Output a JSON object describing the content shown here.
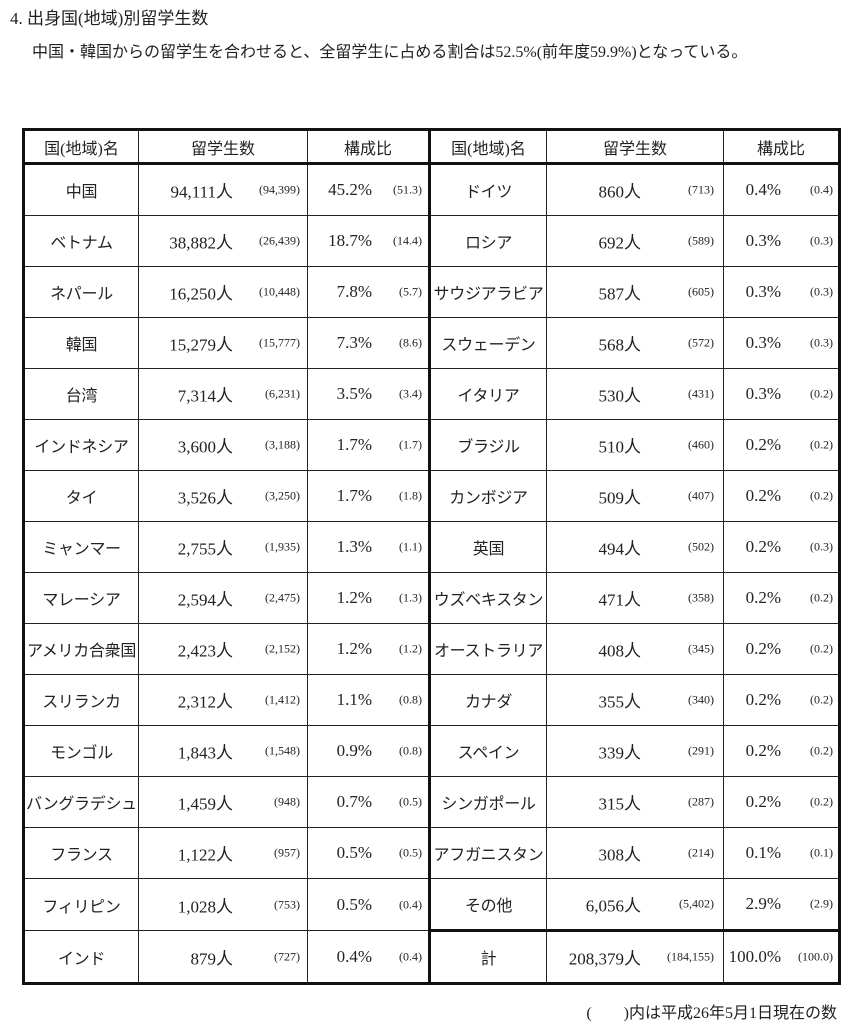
{
  "heading": "4. 出身国(地域)別留学生数",
  "paragraph": "中国・韓国からの留学生を合わせると、全留学生に占める割合は52.5%(前年度59.9%)となっている。",
  "table": {
    "headers": [
      "国(地域)名",
      "留学生数",
      "構成比",
      "国(地域)名",
      "留学生数",
      "構成比"
    ],
    "left": [
      {
        "name": "中国",
        "count": "94,111人",
        "prev_count": "(94,399)",
        "ratio": "45.2%",
        "prev_ratio": "(51.3)"
      },
      {
        "name": "ベトナム",
        "count": "38,882人",
        "prev_count": "(26,439)",
        "ratio": "18.7%",
        "prev_ratio": "(14.4)"
      },
      {
        "name": "ネパール",
        "count": "16,250人",
        "prev_count": "(10,448)",
        "ratio": "7.8%",
        "prev_ratio": "(5.7)"
      },
      {
        "name": "韓国",
        "count": "15,279人",
        "prev_count": "(15,777)",
        "ratio": "7.3%",
        "prev_ratio": "(8.6)"
      },
      {
        "name": "台湾",
        "count": "7,314人",
        "prev_count": "(6,231)",
        "ratio": "3.5%",
        "prev_ratio": "(3.4)"
      },
      {
        "name": "インドネシア",
        "count": "3,600人",
        "prev_count": "(3,188)",
        "ratio": "1.7%",
        "prev_ratio": "(1.7)"
      },
      {
        "name": "タイ",
        "count": "3,526人",
        "prev_count": "(3,250)",
        "ratio": "1.7%",
        "prev_ratio": "(1.8)"
      },
      {
        "name": "ミャンマー",
        "count": "2,755人",
        "prev_count": "(1,935)",
        "ratio": "1.3%",
        "prev_ratio": "(1.1)"
      },
      {
        "name": "マレーシア",
        "count": "2,594人",
        "prev_count": "(2,475)",
        "ratio": "1.2%",
        "prev_ratio": "(1.3)"
      },
      {
        "name": "アメリカ合衆国",
        "count": "2,423人",
        "prev_count": "(2,152)",
        "ratio": "1.2%",
        "prev_ratio": "(1.2)"
      },
      {
        "name": "スリランカ",
        "count": "2,312人",
        "prev_count": "(1,412)",
        "ratio": "1.1%",
        "prev_ratio": "(0.8)"
      },
      {
        "name": "モンゴル",
        "count": "1,843人",
        "prev_count": "(1,548)",
        "ratio": "0.9%",
        "prev_ratio": "(0.8)"
      },
      {
        "name": "バングラデシュ",
        "count": "1,459人",
        "prev_count": "(948)",
        "ratio": "0.7%",
        "prev_ratio": "(0.5)"
      },
      {
        "name": "フランス",
        "count": "1,122人",
        "prev_count": "(957)",
        "ratio": "0.5%",
        "prev_ratio": "(0.5)"
      },
      {
        "name": "フィリピン",
        "count": "1,028人",
        "prev_count": "(753)",
        "ratio": "0.5%",
        "prev_ratio": "(0.4)"
      },
      {
        "name": "インド",
        "count": "879人",
        "prev_count": "(727)",
        "ratio": "0.4%",
        "prev_ratio": "(0.4)"
      }
    ],
    "right": [
      {
        "name": "ドイツ",
        "count": "860人",
        "prev_count": "(713)",
        "ratio": "0.4%",
        "prev_ratio": "(0.4)"
      },
      {
        "name": "ロシア",
        "count": "692人",
        "prev_count": "(589)",
        "ratio": "0.3%",
        "prev_ratio": "(0.3)"
      },
      {
        "name": "サウジアラビア",
        "count": "587人",
        "prev_count": "(605)",
        "ratio": "0.3%",
        "prev_ratio": "(0.3)"
      },
      {
        "name": "スウェーデン",
        "count": "568人",
        "prev_count": "(572)",
        "ratio": "0.3%",
        "prev_ratio": "(0.3)"
      },
      {
        "name": "イタリア",
        "count": "530人",
        "prev_count": "(431)",
        "ratio": "0.3%",
        "prev_ratio": "(0.2)"
      },
      {
        "name": "ブラジル",
        "count": "510人",
        "prev_count": "(460)",
        "ratio": "0.2%",
        "prev_ratio": "(0.2)"
      },
      {
        "name": "カンボジア",
        "count": "509人",
        "prev_count": "(407)",
        "ratio": "0.2%",
        "prev_ratio": "(0.2)"
      },
      {
        "name": "英国",
        "count": "494人",
        "prev_count": "(502)",
        "ratio": "0.2%",
        "prev_ratio": "(0.3)"
      },
      {
        "name": "ウズベキスタン",
        "count": "471人",
        "prev_count": "(358)",
        "ratio": "0.2%",
        "prev_ratio": "(0.2)"
      },
      {
        "name": "オーストラリア",
        "count": "408人",
        "prev_count": "(345)",
        "ratio": "0.2%",
        "prev_ratio": "(0.2)"
      },
      {
        "name": "カナダ",
        "count": "355人",
        "prev_count": "(340)",
        "ratio": "0.2%",
        "prev_ratio": "(0.2)"
      },
      {
        "name": "スペイン",
        "count": "339人",
        "prev_count": "(291)",
        "ratio": "0.2%",
        "prev_ratio": "(0.2)"
      },
      {
        "name": "シンガポール",
        "count": "315人",
        "prev_count": "(287)",
        "ratio": "0.2%",
        "prev_ratio": "(0.2)"
      },
      {
        "name": "アフガニスタン",
        "count": "308人",
        "prev_count": "(214)",
        "ratio": "0.1%",
        "prev_ratio": "(0.1)"
      },
      {
        "name": "その他",
        "count": "6,056人",
        "prev_count": "(5,402)",
        "ratio": "2.9%",
        "prev_ratio": "(2.9)"
      },
      {
        "name": "計",
        "count": "208,379人",
        "prev_count": "(184,155)",
        "ratio": "100.0%",
        "prev_ratio": "(100.0)"
      }
    ]
  },
  "footnote": "(　　)内は平成26年5月1日現在の数"
}
